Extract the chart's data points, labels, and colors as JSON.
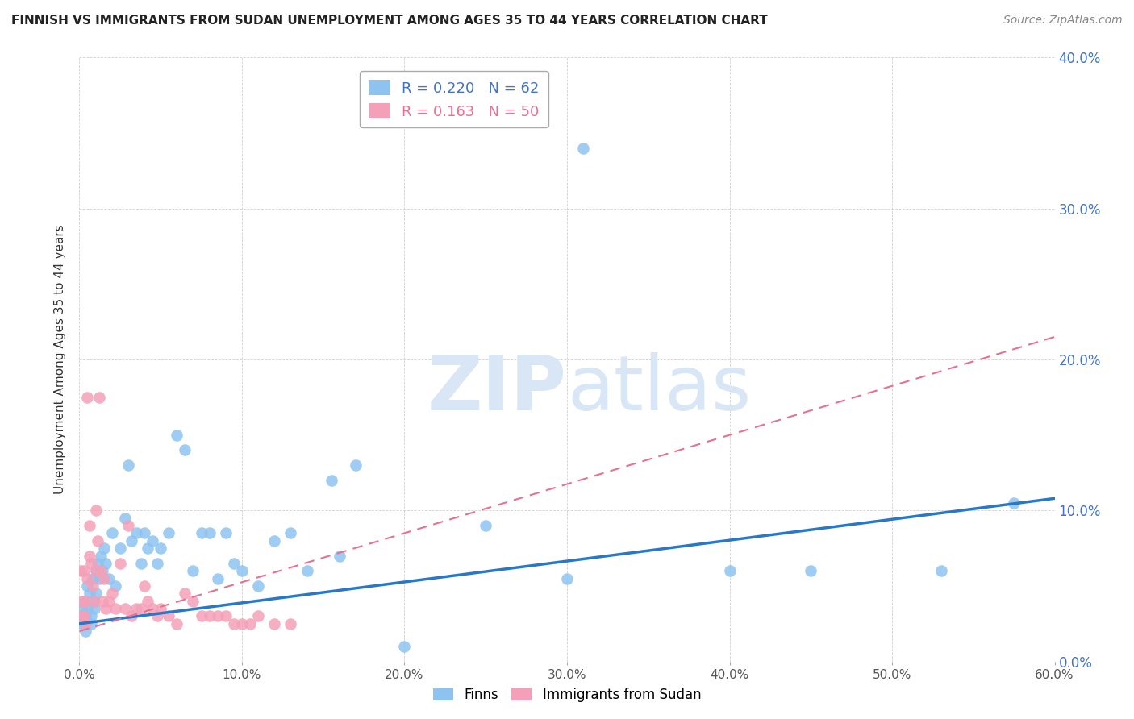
{
  "title": "FINNISH VS IMMIGRANTS FROM SUDAN UNEMPLOYMENT AMONG AGES 35 TO 44 YEARS CORRELATION CHART",
  "source": "Source: ZipAtlas.com",
  "ylabel": "Unemployment Among Ages 35 to 44 years",
  "xlabel_ticks": [
    "0.0%",
    "10.0%",
    "20.0%",
    "30.0%",
    "40.0%",
    "50.0%",
    "60.0%"
  ],
  "ylabel_ticks": [
    "0.0%",
    "10.0%",
    "20.0%",
    "30.0%",
    "40.0%"
  ],
  "xlim": [
    0.0,
    0.6
  ],
  "ylim": [
    0.0,
    0.4
  ],
  "finns_R": 0.22,
  "finns_N": 62,
  "sudan_R": 0.163,
  "sudan_N": 50,
  "finns_color": "#8EC3F0",
  "sudan_color": "#F4A0B8",
  "finns_line_color": "#2878C8",
  "sudan_line_color": "#E87090",
  "background_color": "#FFFFFF",
  "watermark_color": "#D8E6F5",
  "finns_line_x0": 0.0,
  "finns_line_y0": 0.025,
  "finns_line_x1": 0.6,
  "finns_line_y1": 0.108,
  "sudan_line_x0": 0.0,
  "sudan_line_y0": 0.02,
  "sudan_line_x1": 0.6,
  "sudan_line_y1": 0.215,
  "finns_scatter_x": [
    0.001,
    0.002,
    0.002,
    0.003,
    0.003,
    0.004,
    0.004,
    0.005,
    0.005,
    0.006,
    0.007,
    0.007,
    0.008,
    0.008,
    0.009,
    0.01,
    0.01,
    0.011,
    0.012,
    0.013,
    0.014,
    0.015,
    0.016,
    0.018,
    0.02,
    0.022,
    0.025,
    0.028,
    0.03,
    0.032,
    0.035,
    0.038,
    0.04,
    0.042,
    0.045,
    0.048,
    0.05,
    0.055,
    0.06,
    0.065,
    0.07,
    0.075,
    0.08,
    0.085,
    0.09,
    0.095,
    0.1,
    0.11,
    0.12,
    0.13,
    0.14,
    0.155,
    0.16,
    0.17,
    0.2,
    0.25,
    0.3,
    0.31,
    0.4,
    0.45,
    0.53,
    0.575
  ],
  "finns_scatter_y": [
    0.03,
    0.035,
    0.025,
    0.04,
    0.025,
    0.03,
    0.02,
    0.05,
    0.035,
    0.045,
    0.03,
    0.025,
    0.04,
    0.055,
    0.035,
    0.06,
    0.045,
    0.065,
    0.055,
    0.07,
    0.06,
    0.075,
    0.065,
    0.055,
    0.085,
    0.05,
    0.075,
    0.095,
    0.13,
    0.08,
    0.085,
    0.065,
    0.085,
    0.075,
    0.08,
    0.065,
    0.075,
    0.085,
    0.15,
    0.14,
    0.06,
    0.085,
    0.085,
    0.055,
    0.085,
    0.065,
    0.06,
    0.05,
    0.08,
    0.085,
    0.06,
    0.12,
    0.07,
    0.13,
    0.01,
    0.09,
    0.055,
    0.34,
    0.06,
    0.06,
    0.06,
    0.105
  ],
  "sudan_scatter_x": [
    0.001,
    0.002,
    0.002,
    0.003,
    0.003,
    0.004,
    0.004,
    0.005,
    0.005,
    0.006,
    0.006,
    0.007,
    0.008,
    0.009,
    0.01,
    0.01,
    0.011,
    0.012,
    0.013,
    0.014,
    0.015,
    0.016,
    0.018,
    0.02,
    0.022,
    0.025,
    0.028,
    0.03,
    0.032,
    0.035,
    0.038,
    0.04,
    0.042,
    0.045,
    0.048,
    0.05,
    0.055,
    0.06,
    0.065,
    0.07,
    0.075,
    0.08,
    0.085,
    0.09,
    0.095,
    0.1,
    0.105,
    0.11,
    0.12,
    0.13
  ],
  "sudan_scatter_y": [
    0.06,
    0.04,
    0.03,
    0.06,
    0.03,
    0.04,
    0.025,
    0.175,
    0.055,
    0.07,
    0.09,
    0.065,
    0.05,
    0.04,
    0.1,
    0.06,
    0.08,
    0.175,
    0.06,
    0.04,
    0.055,
    0.035,
    0.04,
    0.045,
    0.035,
    0.065,
    0.035,
    0.09,
    0.03,
    0.035,
    0.035,
    0.05,
    0.04,
    0.035,
    0.03,
    0.035,
    0.03,
    0.025,
    0.045,
    0.04,
    0.03,
    0.03,
    0.03,
    0.03,
    0.025,
    0.025,
    0.025,
    0.03,
    0.025,
    0.025
  ]
}
